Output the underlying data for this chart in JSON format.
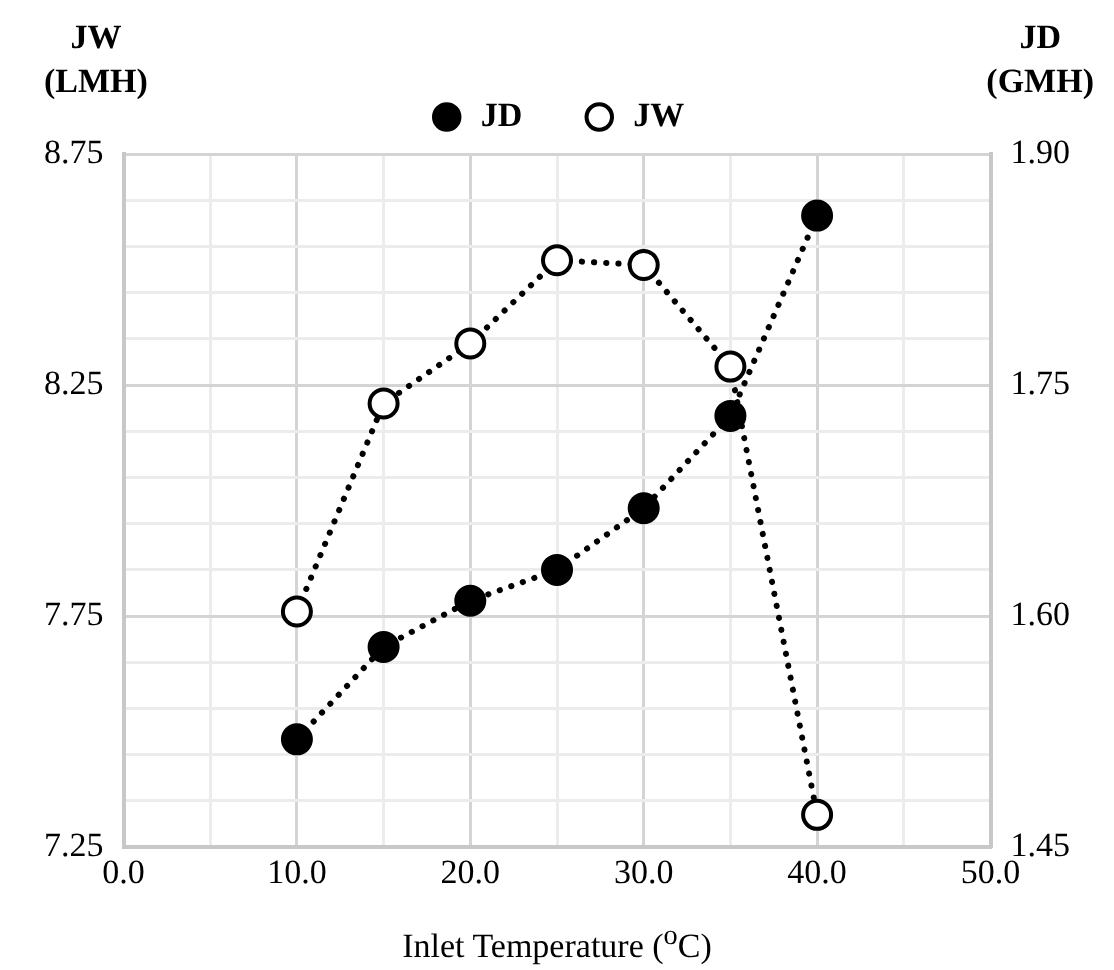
{
  "chart_data": {
    "type": "line",
    "xlabel": "Inlet Temperature ($^{o}$C)",
    "ylabel": "JW\n(LMH)",
    "y2label": "JD\n(GMH)",
    "x": [
      10,
      15,
      20,
      25,
      30,
      35,
      40
    ],
    "series": [
      {
        "name": "JD",
        "color": "#000000",
        "values": [
          1.52,
          1.58,
          1.61,
          1.63,
          1.67,
          1.73,
          1.86
        ],
        "axis": "y2",
        "marker": "circle"
      },
      {
        "name": "JW",
        "color": "#000000",
        "values": [
          7.76,
          8.21,
          8.34,
          8.52,
          8.51,
          8.29,
          7.32
        ],
        "marker": "circle"
      }
    ],
    "xlim": [
      0,
      50
    ],
    "xticks": [
      {
        "value": 0,
        "label": "0.0"
      },
      {
        "value": 5,
        "label": null
      },
      {
        "value": 10,
        "label": "10.0"
      },
      {
        "value": 15,
        "label": null
      },
      {
        "value": 20,
        "label": "20.0"
      },
      {
        "value": 25,
        "label": null
      },
      {
        "value": 30,
        "label": "30.0"
      },
      {
        "value": 35,
        "label": null
      },
      {
        "value": 40,
        "label": "40.0"
      },
      {
        "value": 45,
        "label": null
      },
      {
        "value": 50,
        "label": "50.0"
      }
    ],
    "ylim": [
      7.25,
      8.75
    ],
    "yticks": [
      7.25,
      {
        "value": 7.35,
        "label": null
      },
      {
        "value": 7.45,
        "label": null
      },
      {
        "value": 7.55,
        "label": null
      },
      {
        "value": 7.65,
        "label": null
      },
      7.75,
      {
        "value": 7.85,
        "label": null
      },
      {
        "value": 7.95,
        "label": null
      },
      {
        "value": 8.05,
        "label": null
      },
      {
        "value": 8.15,
        "label": null
      },
      8.25,
      {
        "value": 8.35,
        "label": null
      },
      {
        "value": 8.45,
        "label": null
      },
      {
        "value": 8.55,
        "label": null
      },
      {
        "value": 8.65,
        "label": null
      },
      8.75
    ],
    "y2lim": [
      1.45,
      1.9
    ],
    "y2ticks": [
      1.45,
      {
        "value": 1.6,
        "label": "1.60"
      },
      1.75,
      {
        "value": 1.9,
        "label": "1.90"
      }
    ],
    "grid": true,
    "legend": "top",
    "line_style": "dotted"
  }
}
